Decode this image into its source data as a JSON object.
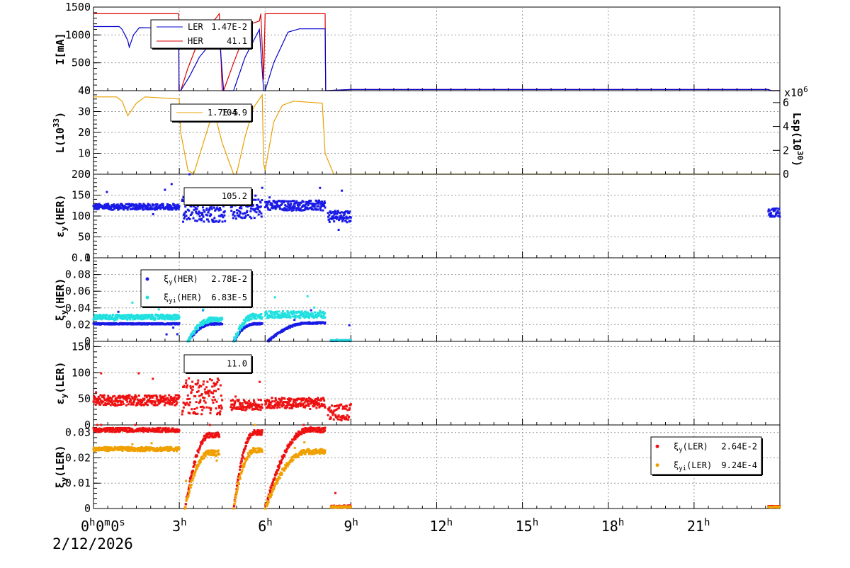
{
  "chart_data": [
    {
      "type": "line",
      "panel": "current",
      "ylabel": "I[mA]",
      "ylim": [
        0,
        1500
      ],
      "yticks": [
        0,
        500,
        1000,
        1500
      ],
      "legend": [
        {
          "label": "LER",
          "value": "1.47E-2",
          "color": "#0000cc"
        },
        {
          "label": "HER",
          "value": "41.1",
          "color": "#dd0000"
        }
      ],
      "series": [
        {
          "name": "LER",
          "color": "#dd0000",
          "x": [
            0,
            2.98,
            2.99,
            3.05,
            3.3,
            3.6,
            3.9,
            4.1,
            4.2,
            4.4,
            4.5,
            4.55,
            4.9,
            5.2,
            5.5,
            5.8,
            5.85,
            5.95,
            6,
            8.1,
            8.12,
            9,
            9.5,
            23.6,
            23.7,
            24
          ],
          "y": [
            1380,
            1380,
            0,
            0,
            400,
            800,
            1100,
            1200,
            1250,
            1380,
            0,
            0,
            500,
            900,
            1200,
            1250,
            1380,
            200,
            1380,
            1380,
            0,
            20,
            20,
            20,
            0,
            0
          ]
        },
        {
          "name": "HER",
          "color": "#0000cc",
          "x": [
            0,
            0.9,
            1.0,
            1.2,
            1.25,
            1.4,
            1.6,
            2.98,
            2.99,
            3.05,
            3.35,
            3.7,
            4.1,
            4.4,
            4.55,
            4.9,
            5.3,
            5.8,
            5.95,
            6.0,
            6.3,
            6.8,
            7.2,
            8.1,
            8.12,
            9,
            9.5,
            23.6,
            23.7,
            24
          ],
          "y": [
            1150,
            1150,
            1100,
            900,
            780,
            1000,
            1130,
            1120,
            0,
            0,
            250,
            600,
            850,
            1000,
            0,
            0,
            600,
            1100,
            0,
            0,
            500,
            1050,
            1110,
            1110,
            0,
            20,
            20,
            20,
            0,
            0
          ]
        }
      ]
    },
    {
      "type": "line",
      "panel": "luminosity",
      "ylabel": "L(10^33)",
      "ylim": [
        0,
        40
      ],
      "yticks": [
        0,
        10,
        20,
        30,
        40
      ],
      "y2label": "Lsp(10^30)",
      "y2ticks": [
        0,
        2,
        4,
        6
      ],
      "y2multiplier": "x10^6",
      "legend": [
        {
          "label": "1.7E-5",
          "value": "104.9",
          "color": "#e8a000"
        }
      ],
      "series": [
        {
          "name": "L",
          "color": "#e8a000",
          "x": [
            0,
            0.8,
            1.0,
            1.2,
            1.5,
            1.8,
            3.0,
            3.05,
            3.3,
            3.5,
            4.0,
            4.2,
            4.5,
            4.9,
            5.0,
            5.3,
            5.6,
            5.9,
            5.95,
            6.0,
            6.3,
            6.6,
            7.0,
            8.0,
            8.1,
            8.4,
            9,
            23.6,
            24
          ],
          "y": [
            37,
            37,
            35,
            28,
            34,
            37,
            36,
            20,
            2,
            0,
            22,
            31,
            15,
            0,
            0,
            18,
            32,
            38,
            5,
            2,
            25,
            33,
            35,
            34,
            10,
            0,
            0,
            0,
            0
          ]
        }
      ]
    },
    {
      "type": "scatter",
      "panel": "emittance_her",
      "ylabel": "εy(HER)",
      "ylim": [
        0,
        200
      ],
      "yticks": [
        0,
        50,
        100,
        150,
        200
      ],
      "legend": [
        {
          "label": "",
          "value": "105.2",
          "color": "#0000dd"
        }
      ],
      "series": [
        {
          "name": "εy(HER)",
          "color": "#1a1ae6",
          "segments": [
            {
              "x0": 0,
              "x1": 3.0,
              "base": 122,
              "amp": 7
            },
            {
              "x0": 3.1,
              "x1": 4.6,
              "base": 115,
              "amp": 30
            },
            {
              "x0": 4.8,
              "x1": 5.9,
              "base": 118,
              "amp": 25
            },
            {
              "x0": 6.0,
              "x1": 8.1,
              "base": 125,
              "amp": 12
            },
            {
              "x0": 8.2,
              "x1": 9.0,
              "base": 100,
              "amp": 15
            },
            {
              "x0": 23.6,
              "x1": 24.0,
              "base": 108,
              "amp": 10
            }
          ]
        }
      ]
    },
    {
      "type": "scatter",
      "panel": "beambeam_her",
      "ylabel": "ξy(HER)",
      "ylim": [
        0,
        0.1
      ],
      "yticks": [
        0,
        0.02,
        0.04,
        0.06,
        0.08,
        0.1
      ],
      "legend": [
        {
          "label": "ξy(HER)",
          "value": "2.78E-2",
          "color": "#1a1ae6"
        },
        {
          "label": "ξyi(HER)",
          "value": "6.83E-5",
          "color": "#22e0e0"
        }
      ],
      "series": [
        {
          "name": "ξy(HER)",
          "color": "#1a1ae6",
          "segments": [
            {
              "x0": 0,
              "x1": 3.0,
              "base": 0.021,
              "amp": 0.0008
            },
            {
              "x0": 3.3,
              "x1": 4.5,
              "ramp": [
                0.0,
                0.021
              ],
              "amp": 0.001
            },
            {
              "x0": 4.9,
              "x1": 5.9,
              "ramp": [
                0.0,
                0.021
              ],
              "amp": 0.001
            },
            {
              "x0": 6.1,
              "x1": 8.1,
              "ramp": [
                0.0,
                0.022
              ],
              "amp": 0.001
            },
            {
              "x0": 8.3,
              "x1": 9.0,
              "base": 0.001,
              "amp": 0.0005
            }
          ]
        },
        {
          "name": "ξyi(HER)",
          "color": "#22e0e0",
          "segments": [
            {
              "x0": 0,
              "x1": 3.0,
              "base": 0.029,
              "amp": 0.003
            },
            {
              "x0": 3.3,
              "x1": 4.5,
              "ramp": [
                0.0,
                0.026
              ],
              "amp": 0.003
            },
            {
              "x0": 4.9,
              "x1": 5.9,
              "ramp": [
                0.0,
                0.03
              ],
              "amp": 0.003
            },
            {
              "x0": 6.0,
              "x1": 8.1,
              "base": 0.032,
              "amp": 0.004
            },
            {
              "x0": 8.3,
              "x1": 9.0,
              "base": 0.001,
              "amp": 0.0005
            }
          ]
        }
      ]
    },
    {
      "type": "scatter",
      "panel": "emittance_ler",
      "ylabel": "εy(LER)",
      "ylim": [
        0,
        160
      ],
      "yticks": [
        0,
        50,
        100,
        150
      ],
      "legend": [
        {
          "label": "",
          "value": "11.0",
          "color": "#dd0000"
        }
      ],
      "series": [
        {
          "name": "εy(LER)",
          "color": "#ee1111",
          "segments": [
            {
              "x0": 0,
              "x1": 3.0,
              "base": 47,
              "amp": 10
            },
            {
              "x0": 3.1,
              "x1": 4.5,
              "base": 55,
              "amp": 35
            },
            {
              "x0": 4.8,
              "x1": 5.9,
              "base": 38,
              "amp": 10
            },
            {
              "x0": 6.0,
              "x1": 8.1,
              "base": 42,
              "amp": 10
            },
            {
              "x0": 8.2,
              "x1": 9.0,
              "base": 25,
              "amp": 15
            }
          ]
        }
      ]
    },
    {
      "type": "scatter",
      "panel": "beambeam_ler",
      "ylabel": "ξy(LER)",
      "ylim": [
        0,
        0.033
      ],
      "yticks": [
        0,
        0.01,
        0.02,
        0.03
      ],
      "legend": [
        {
          "label": "ξy(LER)",
          "value": "2.64E-2",
          "color": "#ee1111"
        },
        {
          "label": "ξyi(LER)",
          "value": "9.24E-4",
          "color": "#f0a000"
        }
      ],
      "series": [
        {
          "name": "ξy(LER)",
          "color": "#ee1111",
          "segments": [
            {
              "x0": 0,
              "x1": 3.0,
              "base": 0.031,
              "amp": 0.0008
            },
            {
              "x0": 3.2,
              "x1": 4.4,
              "ramp": [
                0.0,
                0.029
              ],
              "amp": 0.001
            },
            {
              "x0": 4.9,
              "x1": 5.9,
              "ramp": [
                0.0,
                0.03
              ],
              "amp": 0.001
            },
            {
              "x0": 6.0,
              "x1": 8.1,
              "ramp": [
                0.0,
                0.031
              ],
              "amp": 0.001
            },
            {
              "x0": 8.3,
              "x1": 9.0,
              "base": 0.0008,
              "amp": 0.0004
            },
            {
              "x0": 23.6,
              "x1": 24.0,
              "base": 0.0008,
              "amp": 0.0002
            }
          ]
        },
        {
          "name": "ξyi(LER)",
          "color": "#f0a000",
          "segments": [
            {
              "x0": 0,
              "x1": 3.0,
              "base": 0.0235,
              "amp": 0.0008
            },
            {
              "x0": 3.2,
              "x1": 4.4,
              "ramp": [
                0.0,
                0.022
              ],
              "amp": 0.001
            },
            {
              "x0": 4.9,
              "x1": 5.9,
              "ramp": [
                0.0,
                0.023
              ],
              "amp": 0.001
            },
            {
              "x0": 6.0,
              "x1": 8.1,
              "ramp": [
                0.0,
                0.0225
              ],
              "amp": 0.001
            },
            {
              "x0": 8.3,
              "x1": 9.0,
              "base": 0.0006,
              "amp": 0.0003
            },
            {
              "x0": 23.6,
              "x1": 24.0,
              "base": 0.0006,
              "amp": 0.0002
            }
          ]
        }
      ]
    }
  ],
  "xaxis": {
    "range_hours": [
      0,
      24
    ],
    "tick_labels": [
      {
        "hour": 0,
        "label": "0h0m0s"
      },
      {
        "hour": 3,
        "label": "3h"
      },
      {
        "hour": 6,
        "label": "6h"
      },
      {
        "hour": 9,
        "label": "9h"
      },
      {
        "hour": 12,
        "label": "12h"
      },
      {
        "hour": 15,
        "label": "15h"
      },
      {
        "hour": 18,
        "label": "18h"
      },
      {
        "hour": 21,
        "label": "21h"
      }
    ],
    "date": "2/12/2026"
  }
}
